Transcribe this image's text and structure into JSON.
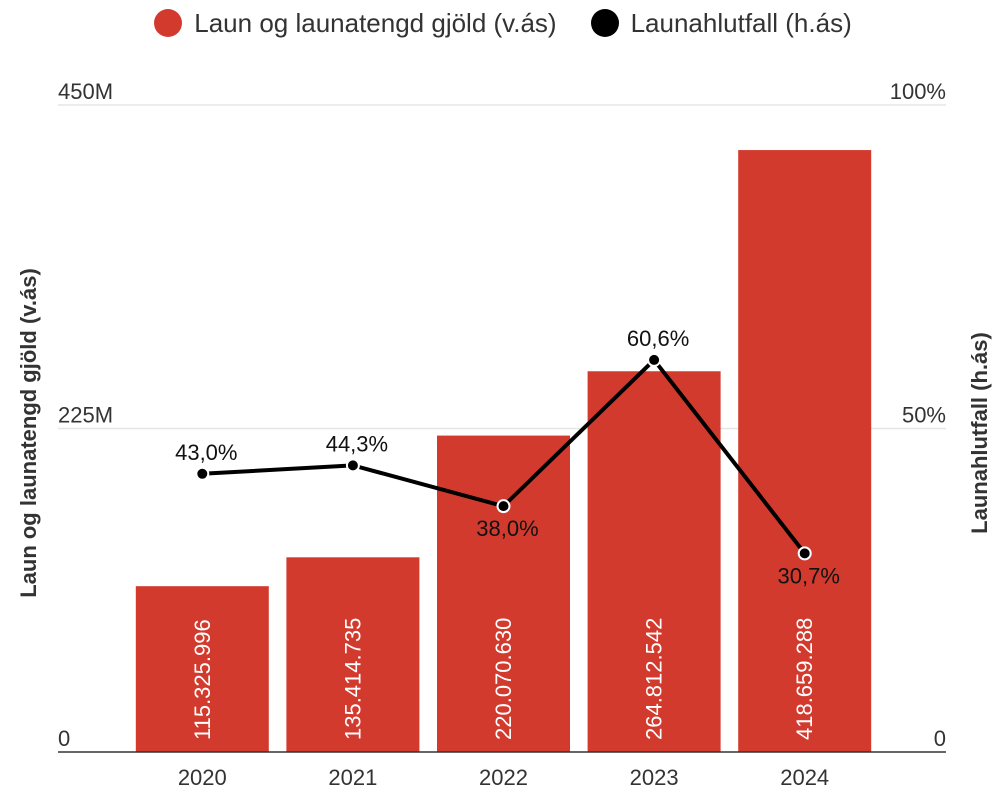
{
  "chart_data": {
    "type": "bar+line",
    "categories": [
      "2020",
      "2021",
      "2022",
      "2023",
      "2024"
    ],
    "series": [
      {
        "name": "Laun og launatengd gjöld (v.ás)",
        "type": "bar",
        "axis": "left",
        "color": "#d33a2e",
        "values": [
          115325996,
          135414735,
          220070630,
          264812542,
          418659288
        ],
        "labels": [
          "115.325.996",
          "135.414.735",
          "220.070.630",
          "264.812.542",
          "418.659.288"
        ]
      },
      {
        "name": "Launahlutfall (h.ás)",
        "type": "line",
        "axis": "right",
        "color": "#000000",
        "values": [
          43.0,
          44.3,
          38.0,
          60.6,
          30.7
        ],
        "labels": [
          "43,0%",
          "44,3%",
          "38,0%",
          "60,6%",
          "30,7%"
        ]
      }
    ],
    "ylabel_left": "Laun og launatengd gjöld (v.ás)",
    "ylabel_right": "Launahlutfall (h.ás)",
    "ylim_left": [
      0,
      450000000
    ],
    "ylim_right": [
      0,
      100
    ],
    "yticks_left": [
      {
        "value": 0,
        "label": "0"
      },
      {
        "value": 225000000,
        "label": "225M"
      },
      {
        "value": 450000000,
        "label": "450M"
      }
    ],
    "yticks_right": [
      {
        "value": 0,
        "label": "0"
      },
      {
        "value": 50,
        "label": "50%"
      },
      {
        "value": 100,
        "label": "100%"
      }
    ],
    "grid": true,
    "legend_position": "top"
  }
}
